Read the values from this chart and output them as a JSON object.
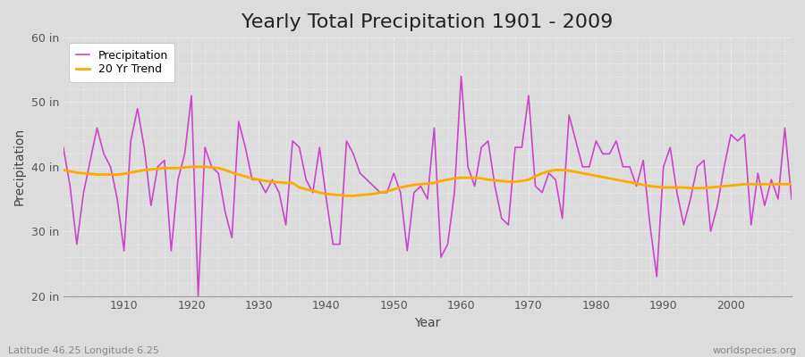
{
  "title": "Yearly Total Precipitation 1901 - 2009",
  "xlabel": "Year",
  "ylabel": "Precipitation",
  "subtitle_left": "Latitude 46.25 Longitude 6.25",
  "subtitle_right": "worldspecies.org",
  "years": [
    1901,
    1902,
    1903,
    1904,
    1905,
    1906,
    1907,
    1908,
    1909,
    1910,
    1911,
    1912,
    1913,
    1914,
    1915,
    1916,
    1917,
    1918,
    1919,
    1920,
    1921,
    1922,
    1923,
    1924,
    1925,
    1926,
    1927,
    1928,
    1929,
    1930,
    1931,
    1932,
    1933,
    1934,
    1935,
    1936,
    1937,
    1938,
    1939,
    1940,
    1941,
    1942,
    1943,
    1944,
    1945,
    1946,
    1947,
    1948,
    1949,
    1950,
    1951,
    1952,
    1953,
    1954,
    1955,
    1956,
    1957,
    1958,
    1959,
    1960,
    1961,
    1962,
    1963,
    1964,
    1965,
    1966,
    1967,
    1968,
    1969,
    1970,
    1971,
    1972,
    1973,
    1974,
    1975,
    1976,
    1977,
    1978,
    1979,
    1980,
    1981,
    1982,
    1983,
    1984,
    1985,
    1986,
    1987,
    1988,
    1989,
    1990,
    1991,
    1992,
    1993,
    1994,
    1995,
    1996,
    1997,
    1998,
    1999,
    2000,
    2001,
    2002,
    2003,
    2004,
    2005,
    2006,
    2007,
    2008,
    2009
  ],
  "precip": [
    43,
    37,
    28,
    36,
    41,
    46,
    42,
    40,
    35,
    27,
    44,
    49,
    43,
    34,
    40,
    41,
    27,
    38,
    42,
    51,
    20,
    43,
    40,
    39,
    33,
    29,
    47,
    43,
    38,
    38,
    36,
    38,
    36,
    31,
    44,
    43,
    38,
    36,
    43,
    35,
    28,
    28,
    44,
    42,
    39,
    38,
    37,
    36,
    36,
    39,
    36,
    27,
    36,
    37,
    35,
    46,
    26,
    28,
    36,
    54,
    40,
    37,
    43,
    44,
    37,
    32,
    31,
    43,
    43,
    51,
    37,
    36,
    39,
    38,
    32,
    48,
    44,
    40,
    40,
    44,
    42,
    42,
    44,
    40,
    40,
    37,
    41,
    31,
    23,
    40,
    43,
    36,
    31,
    35,
    40,
    41,
    30,
    34,
    40,
    45,
    44,
    45,
    31,
    39,
    34,
    38,
    35,
    46,
    35
  ],
  "trend": [
    39.5,
    39.3,
    39.1,
    39.0,
    38.9,
    38.8,
    38.8,
    38.8,
    38.8,
    38.9,
    39.1,
    39.3,
    39.5,
    39.6,
    39.7,
    39.8,
    39.8,
    39.8,
    39.9,
    40.0,
    40.0,
    40.0,
    39.9,
    39.8,
    39.5,
    39.1,
    38.8,
    38.5,
    38.2,
    38.0,
    37.8,
    37.7,
    37.6,
    37.5,
    37.5,
    36.8,
    36.5,
    36.3,
    36.0,
    35.8,
    35.7,
    35.6,
    35.5,
    35.5,
    35.6,
    35.7,
    35.8,
    36.0,
    36.2,
    36.5,
    36.8,
    37.0,
    37.2,
    37.3,
    37.4,
    37.5,
    37.8,
    38.0,
    38.2,
    38.3,
    38.3,
    38.3,
    38.2,
    38.0,
    37.9,
    37.8,
    37.7,
    37.7,
    37.8,
    38.0,
    38.5,
    39.0,
    39.3,
    39.5,
    39.5,
    39.4,
    39.2,
    39.0,
    38.8,
    38.6,
    38.4,
    38.2,
    38.0,
    37.8,
    37.6,
    37.4,
    37.2,
    37.0,
    36.9,
    36.8,
    36.8,
    36.8,
    36.8,
    36.7,
    36.7,
    36.7,
    36.8,
    36.9,
    37.0,
    37.1,
    37.2,
    37.3,
    37.3,
    37.3,
    37.3,
    37.3,
    37.3,
    37.3,
    37.3
  ],
  "precip_color": "#cc44cc",
  "trend_color": "#ffaa00",
  "background_color": "#dcdcdc",
  "plot_bg_color": "#dcdcdc",
  "grid_color": "#ffffff",
  "ylim": [
    20,
    60
  ],
  "yticks": [
    20,
    30,
    40,
    50,
    60
  ],
  "ytick_labels": [
    "20 in",
    "30 in",
    "40 in",
    "50 in",
    "60 in"
  ],
  "xlim": [
    1901,
    2009
  ],
  "title_fontsize": 16,
  "axis_fontsize": 10,
  "tick_fontsize": 9,
  "legend_fontsize": 9
}
